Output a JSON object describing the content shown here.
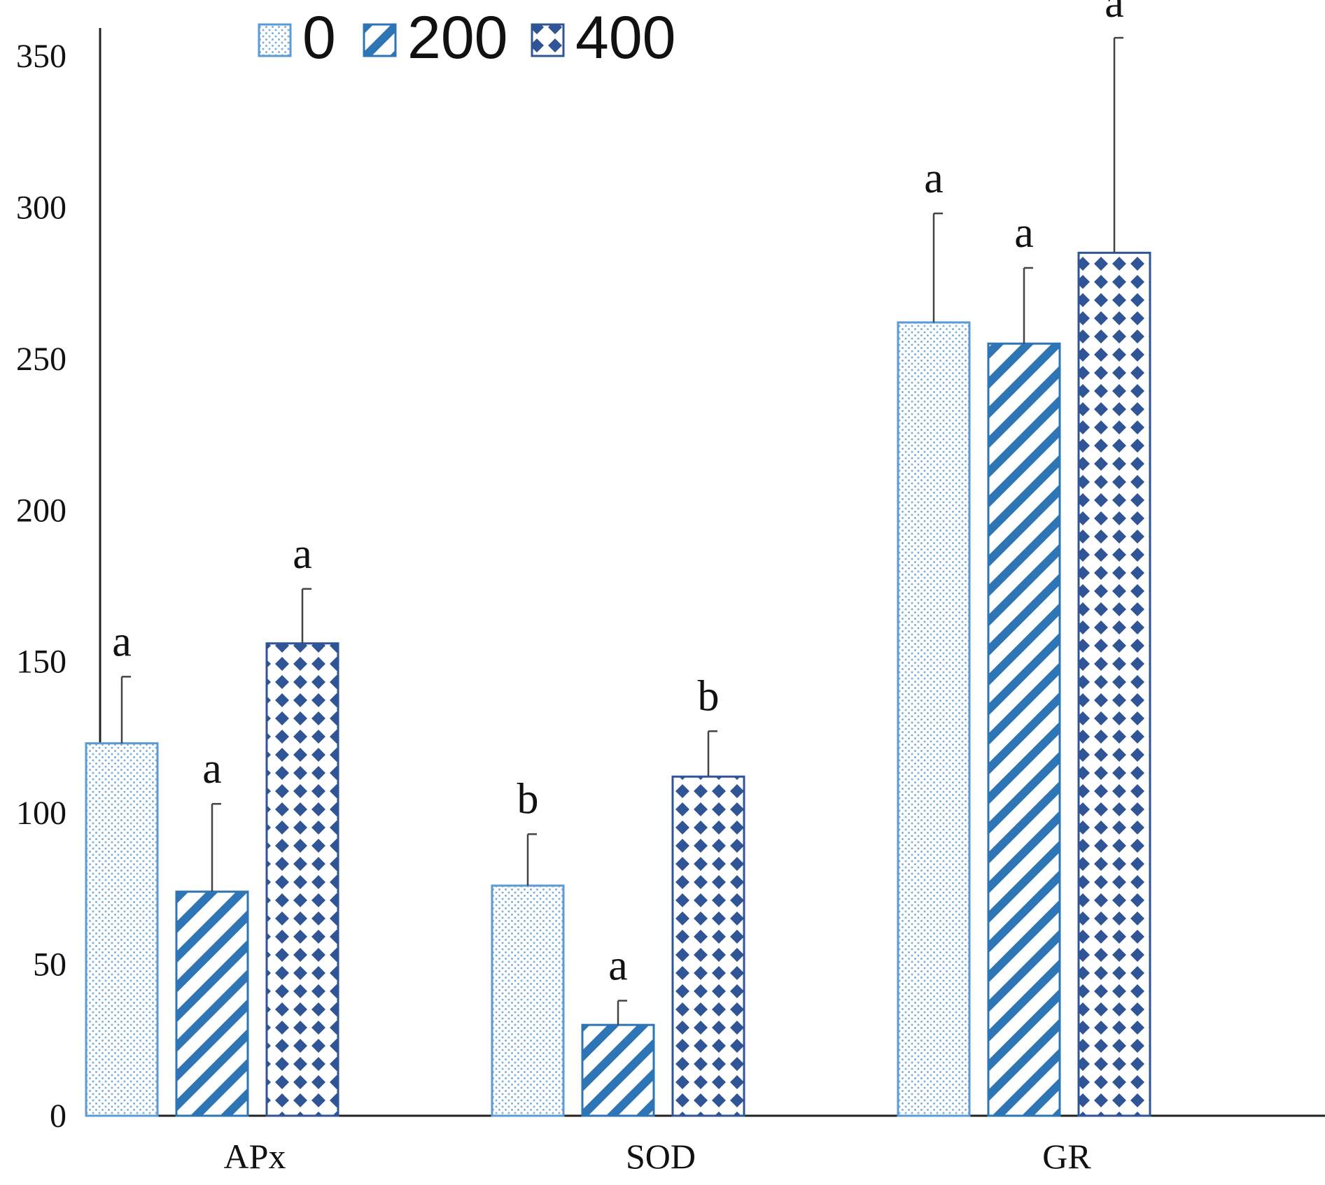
{
  "chart_data": {
    "type": "bar",
    "categories": [
      "APx",
      "SOD",
      "GR"
    ],
    "series": [
      {
        "name": "0",
        "pattern": "dots",
        "color": "#5b9bd5",
        "values": [
          123,
          76,
          262
        ],
        "errors": [
          22,
          17,
          36
        ],
        "letters": [
          "a",
          "b",
          "a"
        ]
      },
      {
        "name": "200",
        "pattern": "diagonal-stripes",
        "color": "#2e75b6",
        "values": [
          74,
          30,
          255
        ],
        "errors": [
          29,
          8,
          25
        ],
        "letters": [
          "a",
          "a",
          "a"
        ]
      },
      {
        "name": "400",
        "pattern": "diamonds",
        "color": "#2f5597",
        "values": [
          156,
          112,
          285
        ],
        "errors": [
          18,
          15,
          71
        ],
        "letters": [
          "a",
          "b",
          "a"
        ]
      }
    ],
    "ylim": [
      0,
      360
    ],
    "yticks": [
      0,
      50,
      100,
      150,
      200,
      250,
      300,
      350
    ],
    "legend": "top-left",
    "grid": false,
    "title": "",
    "xlabel": "",
    "ylabel": ""
  }
}
